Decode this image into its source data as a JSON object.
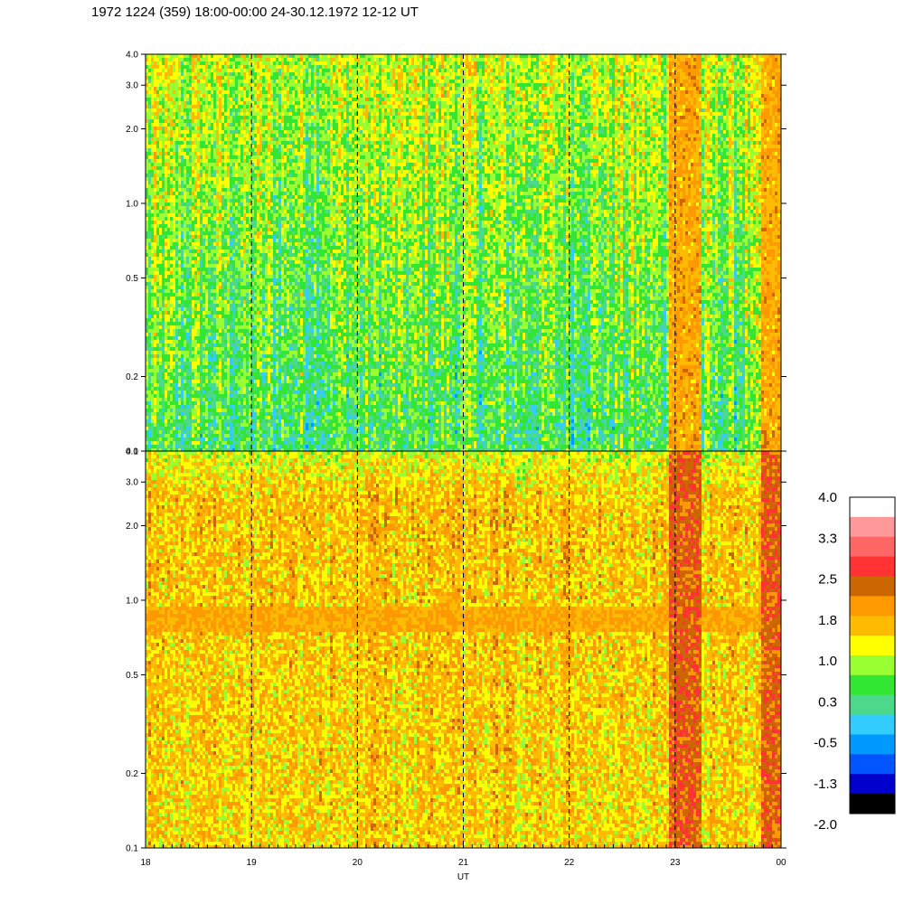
{
  "title": "1972 1224 (359) 18:00-00:00 24-30.12.1972  12-12 UT",
  "chart_data": [
    {
      "type": "heatmap",
      "panel": "upper",
      "y_scale": "log",
      "ylim": [
        0.1,
        4.0
      ],
      "y_ticks": [
        "0.1",
        "0.2",
        "0.5",
        "1.0",
        "2.0",
        "3.0",
        "4.0"
      ],
      "x_ticks": [
        "18",
        "19",
        "20",
        "21",
        "22",
        "23",
        "00"
      ],
      "xlim_hours": [
        18,
        24
      ],
      "background_level": 0.5,
      "features": [
        {
          "x_start": 22.93,
          "x_end": 23.23,
          "level": 1.8
        },
        {
          "x_start": 23.8,
          "x_end": 24.0,
          "level": 1.8
        }
      ]
    },
    {
      "type": "heatmap",
      "panel": "lower",
      "y_scale": "log",
      "ylim": [
        0.1,
        4.0
      ],
      "y_ticks": [
        "0.1",
        "0.2",
        "0.5",
        "1.0",
        "2.0",
        "3.0",
        "4.0"
      ],
      "x_ticks": [
        "18",
        "19",
        "20",
        "21",
        "22",
        "23",
        "00"
      ],
      "xlabel": "UT",
      "background_level": 1.5,
      "features": [
        {
          "y_start": 0.75,
          "y_end": 0.95,
          "level": 1.8
        },
        {
          "x_start": 22.93,
          "x_end": 23.23,
          "level": 2.5
        },
        {
          "x_start": 23.8,
          "x_end": 24.0,
          "level": 2.5
        }
      ]
    }
  ],
  "colorbar": {
    "labels": [
      "4.0",
      "3.3",
      "2.5",
      "1.8",
      "1.0",
      "0.3",
      "-0.5",
      "-1.3",
      "-2.0"
    ],
    "colors": [
      "#ffffff",
      "#ff9999",
      "#ff6666",
      "#ff3333",
      "#cc6600",
      "#ff9900",
      "#ffbb00",
      "#ffff00",
      "#99ff33",
      "#33e633",
      "#4dd98c",
      "#33ccff",
      "#0099ff",
      "#0055ff",
      "#0000cc",
      "#000000"
    ]
  }
}
